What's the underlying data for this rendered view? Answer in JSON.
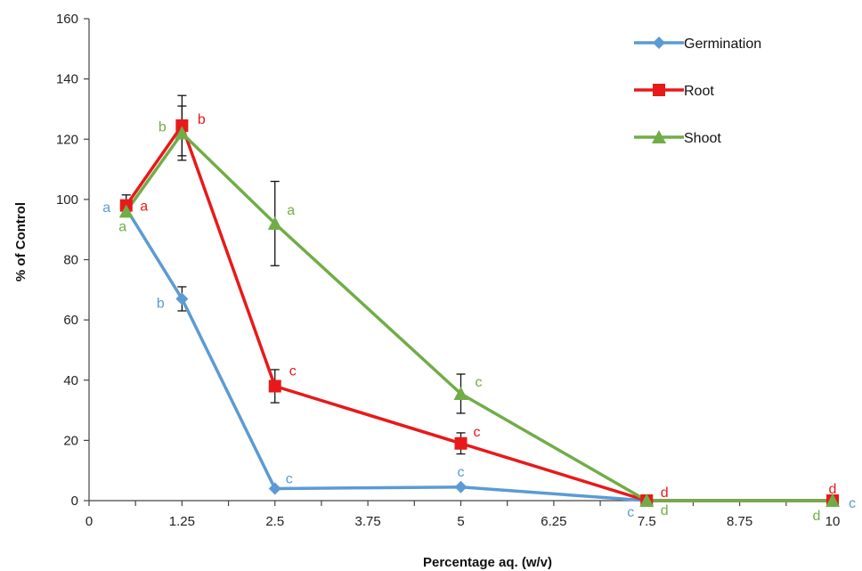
{
  "chart_data": {
    "type": "line",
    "title": "",
    "xlabel": "Percentage aq. (w/v)",
    "ylabel": "% of Control",
    "xlim": [
      0,
      10
    ],
    "ylim": [
      0,
      160
    ],
    "xticks": [
      0,
      1.25,
      2.5,
      3.75,
      5,
      6.25,
      7.5,
      8.75,
      10
    ],
    "xtick_labels": [
      "0",
      "1.25",
      "2.5",
      "3.75",
      "5",
      "6.25",
      "7.5",
      "8.75",
      "10"
    ],
    "yticks": [
      0,
      20,
      40,
      60,
      80,
      100,
      120,
      140,
      160
    ],
    "ytick_labels": [
      "0",
      "20",
      "40",
      "60",
      "80",
      "100",
      "120",
      "140",
      "160"
    ],
    "grid": false,
    "legend_position": "top-right",
    "series": [
      {
        "name": "Germination",
        "color": "#5b9bd5",
        "marker": "diamond",
        "x": [
          0.5,
          1.25,
          2.5,
          5,
          7.5,
          10
        ],
        "y": [
          97,
          67,
          4,
          4.5,
          0,
          0
        ],
        "err": [
          0,
          4,
          0,
          0,
          0,
          0
        ],
        "sig": [
          "a",
          "b",
          "c",
          "c",
          "c",
          "c"
        ]
      },
      {
        "name": "Root",
        "color": "#e8191a",
        "marker": "square",
        "x": [
          0.5,
          1.25,
          2.5,
          5,
          7.5,
          10
        ],
        "y": [
          98,
          124.5,
          38,
          19,
          0,
          0
        ],
        "err": [
          3.5,
          10,
          5.5,
          3.5,
          0,
          0
        ],
        "sig": [
          "a",
          "b",
          "c",
          "c",
          "d",
          "d"
        ]
      },
      {
        "name": "Shoot",
        "color": "#70ad47",
        "marker": "triangle",
        "x": [
          0.5,
          1.25,
          2.5,
          5,
          7.5,
          10
        ],
        "y": [
          96,
          122,
          92,
          35.5,
          0,
          0
        ],
        "err": [
          0,
          9,
          14,
          6.5,
          0,
          0
        ],
        "sig": [
          "a",
          "b",
          "a",
          "c",
          "d",
          "d"
        ]
      }
    ]
  }
}
